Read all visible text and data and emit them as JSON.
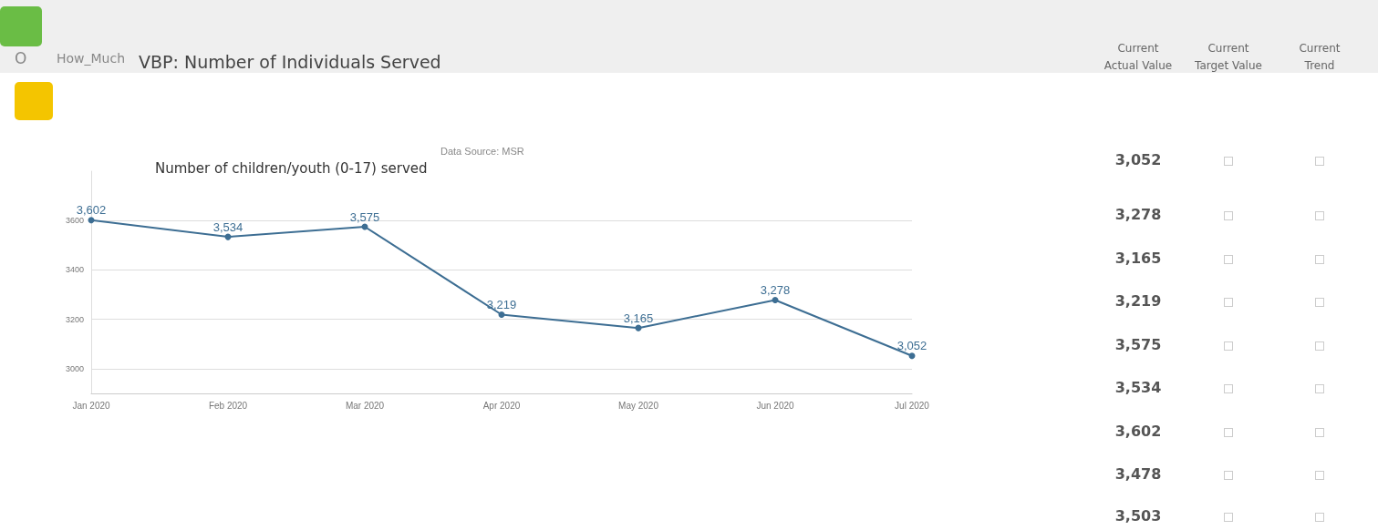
{
  "chart_data": [
    {
      "type": "line",
      "title": "Number of children/youth (0-17) served",
      "annotations": [
        "Data Source: MSR"
      ],
      "categories": [
        "Jan 2020",
        "Feb 2020",
        "Mar 2020",
        "Apr 2020",
        "May 2020",
        "Jun 2020",
        "Jul 2020"
      ],
      "series": [
        {
          "color": "#3d6e93",
          "values": [
            3602,
            3534,
            3575,
            3219,
            3165,
            3278,
            3052
          ],
          "value_labels": [
            "3,602",
            "3,534",
            "3,575",
            "3,219",
            "3,165",
            "3,278",
            "3,052"
          ]
        }
      ],
      "ylim": [
        2900,
        3800
      ],
      "yticks": [
        3000,
        3200,
        3400,
        3600
      ],
      "grid": "y",
      "marker": "circle",
      "line_style": "solid"
    },
    {
      "type": "other",
      "title": "VBP: Number of Individuals Served",
      "annotations": [
        "O",
        "How_Much",
        "Current Actual Value",
        "Current Target Value",
        "Current Trend",
        "3,052",
        "3,278",
        "3,165",
        "3,219",
        "3,575",
        "3,534",
        "3,602",
        "3,478",
        "3,503"
      ]
    }
  ]
}
